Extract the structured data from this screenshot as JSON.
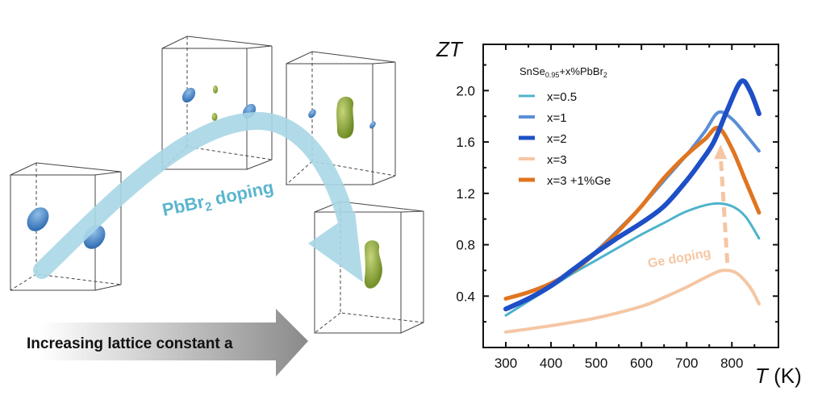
{
  "diagram": {
    "doping_label": "PbBr",
    "doping_label_sub": "2",
    "doping_label_rest": " doping",
    "lattice_arrow_label": "Increasing lattice constant a",
    "colors": {
      "blue_lobe": "#3f7fc4",
      "green_lobe": "#8fa83a",
      "doping_arrow": "#a9d7e6",
      "gray_arrow": "#8c8c8c"
    }
  },
  "chart_data": {
    "type": "line",
    "ylabel": "ZT",
    "xlabel_italic": "T",
    "xlabel_unit": " (K)",
    "xlim": [
      250,
      903
    ],
    "ylim": [
      0,
      2.36
    ],
    "xticks": [
      "300",
      "400",
      "500",
      "600",
      "700",
      "800"
    ],
    "yticks": [
      "0.4",
      "0.8",
      "1.2",
      "1.6",
      "2.0"
    ],
    "legend_title": "SnSe",
    "legend_title_sub": "0.95",
    "legend_title_rest": "+x%PbBr",
    "legend_title_sub2": "2",
    "legend_position": "top-left",
    "annotation": "Ge doping",
    "series": [
      {
        "name": "x=0.5",
        "color": "#4db3cc",
        "width": 3,
        "x": [
          300,
          350,
          400,
          450,
          500,
          550,
          600,
          650,
          700,
          760,
          800,
          830,
          860
        ],
        "y": [
          0.25,
          0.36,
          0.47,
          0.58,
          0.68,
          0.78,
          0.88,
          0.97,
          1.06,
          1.12,
          1.1,
          1.02,
          0.85
        ]
      },
      {
        "name": "x=1",
        "color": "#5b8fd6",
        "width": 4,
        "x": [
          300,
          350,
          400,
          450,
          500,
          550,
          600,
          650,
          700,
          740,
          770,
          800,
          830,
          860
        ],
        "y": [
          0.3,
          0.38,
          0.48,
          0.6,
          0.75,
          0.92,
          1.1,
          1.3,
          1.5,
          1.68,
          1.83,
          1.78,
          1.66,
          1.53
        ]
      },
      {
        "name": "x=2",
        "color": "#1e4fc7",
        "width": 6,
        "x": [
          300,
          350,
          400,
          450,
          500,
          550,
          600,
          650,
          700,
          730,
          760,
          790,
          820,
          840,
          860
        ],
        "y": [
          0.3,
          0.38,
          0.48,
          0.61,
          0.74,
          0.86,
          0.97,
          1.1,
          1.3,
          1.44,
          1.6,
          1.85,
          2.07,
          2.0,
          1.82
        ],
        "stroke_note": ""
      },
      {
        "name": "x=3",
        "color": "#f5c6a3",
        "width": 4,
        "x": [
          300,
          400,
          500,
          600,
          650,
          700,
          750,
          780,
          810,
          840,
          860
        ],
        "y": [
          0.12,
          0.17,
          0.23,
          0.32,
          0.39,
          0.47,
          0.56,
          0.6,
          0.58,
          0.47,
          0.34
        ]
      },
      {
        "name": "x=3 +1%Ge",
        "color": "#e07520",
        "width": 5,
        "x": [
          300,
          350,
          400,
          450,
          500,
          550,
          600,
          650,
          700,
          740,
          770,
          800,
          830,
          860
        ],
        "y": [
          0.38,
          0.43,
          0.5,
          0.6,
          0.74,
          0.91,
          1.1,
          1.32,
          1.5,
          1.62,
          1.71,
          1.55,
          1.3,
          1.05
        ]
      }
    ],
    "ge_arrow": {
      "from": [
        790,
        0.66
      ],
      "to": [
        775,
        1.58
      ],
      "color": "#f5c6a3"
    }
  }
}
